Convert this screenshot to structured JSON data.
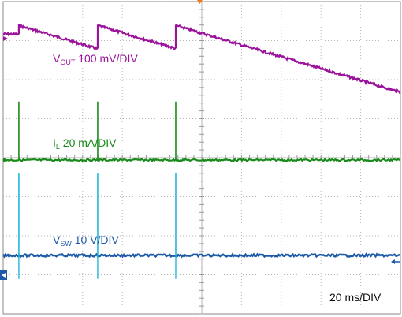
{
  "chart_data": {
    "type": "line",
    "grid": true,
    "x_unit": "ms",
    "x_per_div": 20,
    "x_divisions": 10,
    "timebase_label": "20 ms/DIV",
    "events_ms": [
      7.9,
      47.6,
      86.9
    ],
    "series": [
      {
        "name": "V_OUT",
        "label_main": "V",
        "label_sub": "OUT",
        "label_rest": " 100 mV/DIV",
        "color": "#9b139b",
        "scale": "100 mV/DIV",
        "pattern": "sawtooth",
        "level_before_first_div": 0.38,
        "peak_div": 0.6,
        "trough_div": 0.0,
        "unit": "div"
      },
      {
        "name": "I_L",
        "label_main": "I",
        "label_sub": "L",
        "label_rest": " 20 mA/DIV",
        "color": "#1a8a1a",
        "scale": "20 mA/DIV",
        "pattern": "baseline-with-spikes",
        "spike_height_div": 1.5,
        "unit": "div"
      },
      {
        "name": "V_SW",
        "label_main": "V",
        "label_sub": "SW",
        "label_rest": " 10 V/DIV",
        "color": "#1d5aa8",
        "spike_color": "#22b8d8",
        "scale": "10 V/DIV",
        "pattern": "baseline-with-spikes",
        "spike_height_div": 2.1,
        "undershoot_div": 0.6,
        "unit": "div"
      }
    ]
  }
}
